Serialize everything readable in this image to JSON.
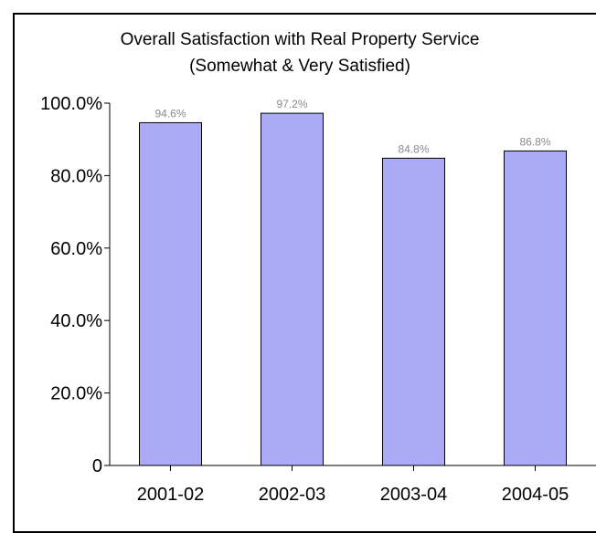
{
  "chart_data": {
    "type": "bar",
    "title": "Overall Satisfaction with Real Property Service",
    "subtitle": "(Somewhat & Very Satisfied)",
    "xlabel": "",
    "ylabel": "",
    "categories": [
      "2001-02",
      "2002-03",
      "2003-04",
      "2004-05"
    ],
    "values": [
      94.6,
      97.2,
      84.8,
      86.8
    ],
    "data_labels": [
      "94.6%",
      "97.2%",
      "84.8%",
      "86.8%"
    ],
    "ylim": [
      0,
      100
    ],
    "yticks": [
      0,
      20,
      40,
      60,
      80,
      100
    ],
    "ytick_labels": [
      "0",
      "20.0%",
      "40.0%",
      "60.0%",
      "80.0%",
      "100.0%"
    ],
    "grid": false,
    "legend": "none",
    "colors": {
      "bar_fill": "#aaaaf5",
      "bar_stroke": "#000000",
      "data_label": "#8a8a8a"
    }
  }
}
